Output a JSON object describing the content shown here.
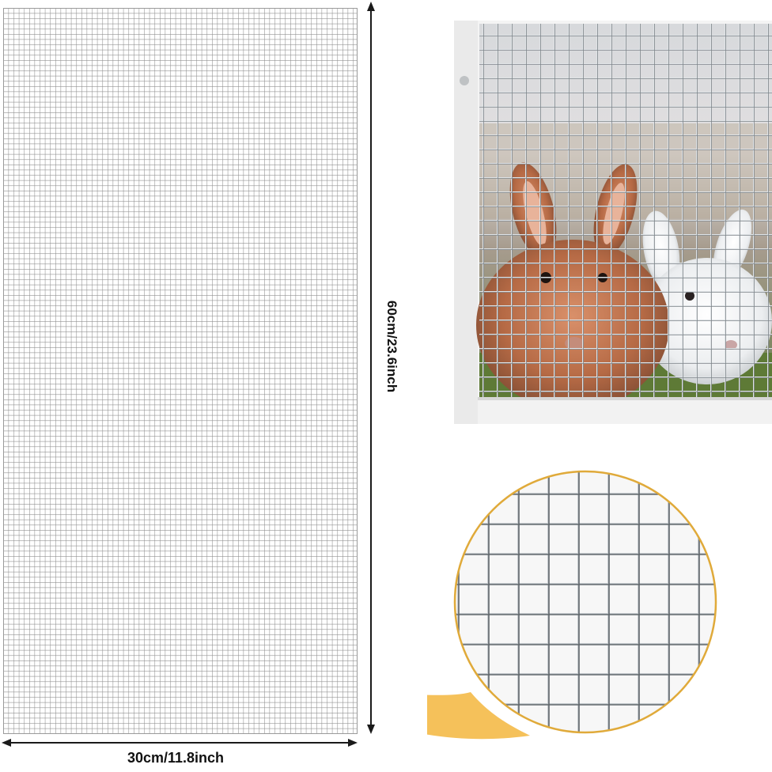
{
  "dimensions": {
    "width_label": "30cm/11.8inch",
    "height_label": "60cm/23.6inch"
  },
  "colors": {
    "mesh_wire": "#9a9a9a",
    "arrow": "#1a1a1a",
    "zoom_ring": "#e0aa3a",
    "zoom_tail": "#f5c15a",
    "photo_frame": "#f4f4f4"
  },
  "icons": {
    "arrow": "double-headed-arrow-icon",
    "zoom": "magnifier-callout-icon"
  }
}
